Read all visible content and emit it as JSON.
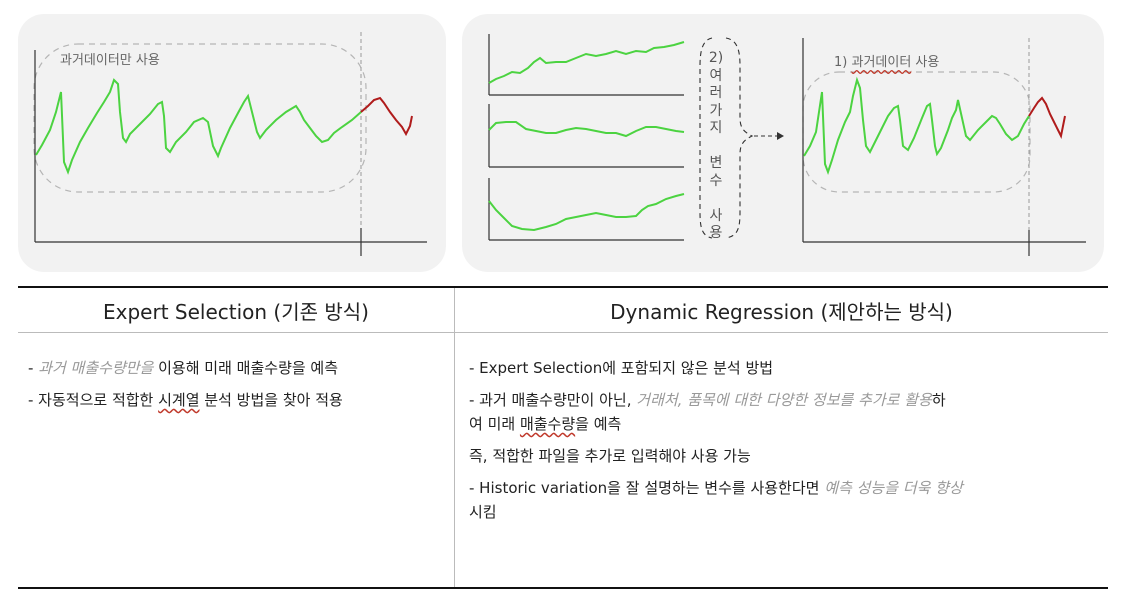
{
  "diagram": {
    "left_panel": {
      "label": "과거데이터만 사용"
    },
    "right_panel": {
      "label_prefix": "1) ",
      "label_underlined": "과거데이터",
      "label_suffix": " 사용",
      "vertical_label_chars": [
        "2)",
        "여",
        "러",
        "가",
        "지",
        "",
        "변",
        "수",
        "",
        "사",
        "용"
      ]
    },
    "colors": {
      "history_line": "#4cd341",
      "forecast_line": "#b01c1c",
      "dashed_outline": "#b5b5b5",
      "panel_bg": "#f2f2f2"
    }
  },
  "comparison": {
    "left_header": "Expert Selection (기존 방식)",
    "right_header": "Dynamic Regression (제안하는 방식)",
    "left_items": [
      {
        "prefix": "- ",
        "italic": "과거 매출수량만을",
        "rest": " 이용해 미래 매출수량을 예측"
      },
      {
        "prefix": "- 자동적으로 적합한 ",
        "underlined": "시계열",
        "rest": " 분석 방법을 찾아 적용"
      }
    ],
    "right_items": {
      "item1": "- Expert Selection에 포함되지 않은 분석 방법",
      "item2_text1": "- 과거 매출수량만이 아닌, ",
      "item2_italic": "거래처, 품목에 대한 다양한 정보를 추가로 활용",
      "item2_text2": "하",
      "item2_line2_pre": "여 미래 ",
      "item2_line2_underlined": "매출수량",
      "item2_line2_post": "을 예측",
      "item3": "즉, 적합한 파일을 추가로 입력해야 사용 가능",
      "item4_text1": "- Historic variation을 잘 설명하는 변수를 사용한다면 ",
      "item4_italic": "예측 성능을 더욱 향상",
      "item4_line2": "시킴"
    }
  }
}
